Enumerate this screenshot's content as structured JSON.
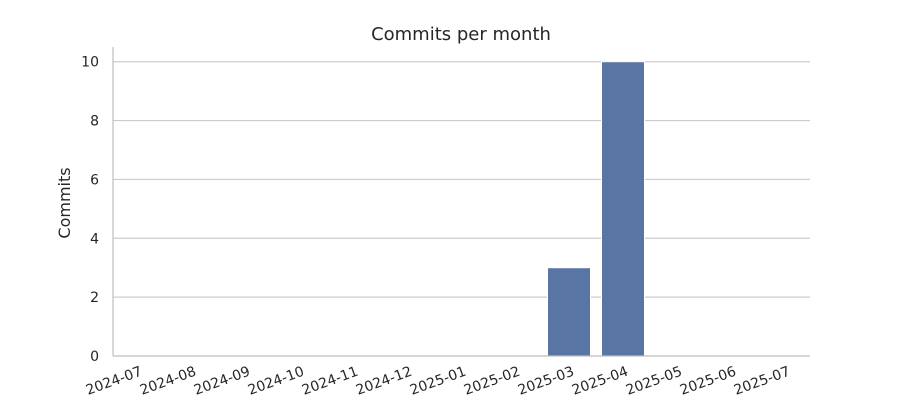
{
  "chart_data": {
    "type": "bar",
    "title": "Commits per month",
    "xlabel": "",
    "ylabel": "Commits",
    "categories": [
      "2024-07",
      "2024-08",
      "2024-09",
      "2024-10",
      "2024-11",
      "2024-12",
      "2025-01",
      "2025-02",
      "2025-03",
      "2025-04",
      "2025-05",
      "2025-06",
      "2025-07"
    ],
    "values": [
      0,
      0,
      0,
      0,
      0,
      0,
      0,
      0,
      3,
      10,
      0,
      0,
      0
    ],
    "ylim": [
      0,
      10.5
    ],
    "yticks": [
      "0",
      "2",
      "4",
      "6",
      "8",
      "10"
    ],
    "grid": "horizontal",
    "bar_color": "#5875a4"
  }
}
